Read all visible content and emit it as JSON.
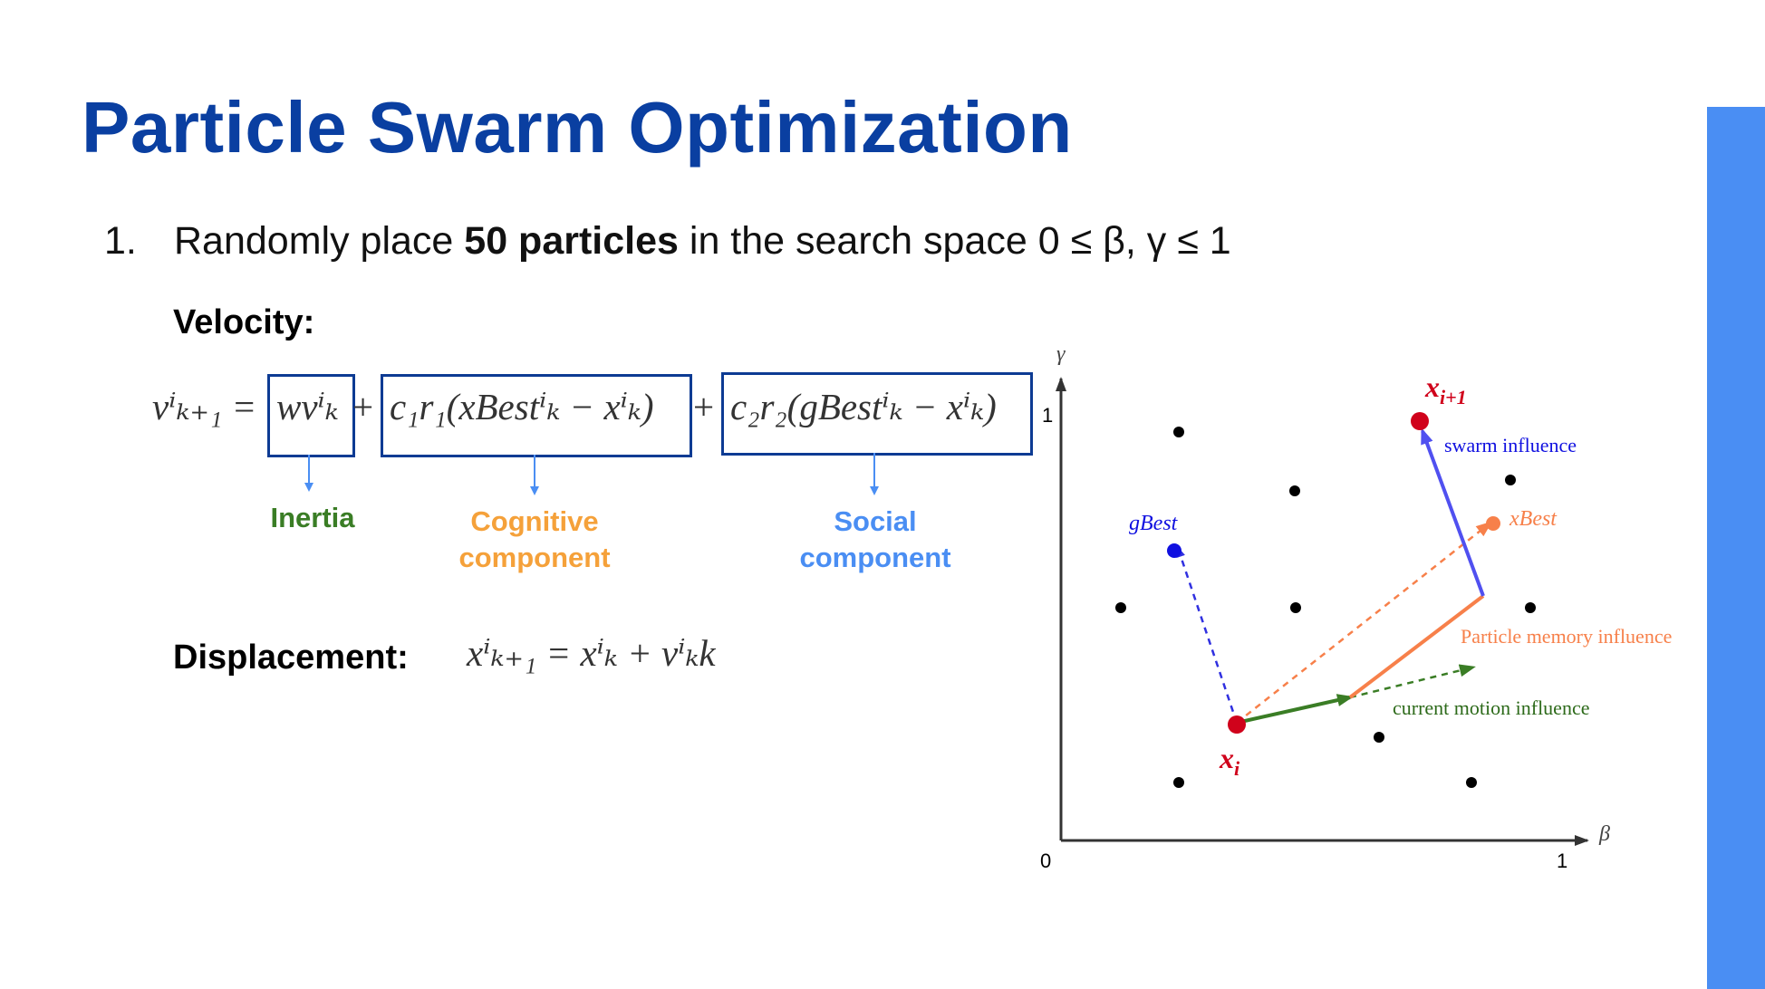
{
  "slide": {
    "title": "Particle Swarm Optimization",
    "step_number": "1.",
    "step_text_pre": "Randomly place ",
    "step_text_bold": "50 particles",
    "step_text_post": " in the search space 0 ≤ β, γ ≤ 1",
    "velocity_label": "Velocity:",
    "displacement_label": "Displacement:"
  },
  "equations": {
    "velocity_lhs": "vⁱₖ₊₁ =",
    "inertia_term": "wvⁱₖ",
    "plus": "+",
    "cognitive_term": "c₁r₁(xBestⁱₖ − xⁱₖ)",
    "social_term": "c₂r₂(gBestⁱₖ − xⁱₖ)",
    "displacement": "xⁱₖ₊₁ = xⁱₖ + vⁱₖk"
  },
  "components": {
    "inertia": "Inertia",
    "cognitive_1": "Cognitive",
    "cognitive_2": "component",
    "social_1": "Social",
    "social_2": "component"
  },
  "diagram": {
    "axis_x_name": "β",
    "axis_y_name": "γ",
    "origin_label": "0",
    "x_max_label": "1",
    "y_max_label": "1",
    "x_next_label": "x",
    "x_next_sub": "i+1",
    "x_i_label": "x",
    "x_i_sub": "i",
    "gbest_label": "gBest",
    "xbest_label": "xBest",
    "swarm_influence": "swarm influence",
    "memory_influence": "Particle memory influence",
    "motion_influence": "current motion influence"
  },
  "colors": {
    "title": "#0a3fa1",
    "inertia": "#3a7d25",
    "cognitive": "#f5a13a",
    "social": "#4a8ef3",
    "box_border": "#0d3b93",
    "particle_red": "#d0021b",
    "gbest_blue": "#1010e0",
    "swarm_arrow": "#5050f0",
    "memory_orange": "#f7804a",
    "motion_green": "#3a7d25",
    "sidebar": "#4a8ef3"
  }
}
